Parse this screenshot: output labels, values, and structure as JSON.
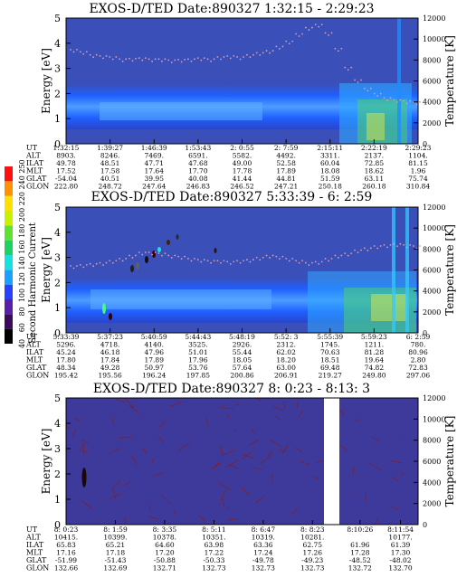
{
  "colors": {
    "background": "#3a4fb8",
    "band": "#1f5fff",
    "band_core": "#4d9dff",
    "noise_green": "#49d26c",
    "noise_yellow": "#f2ee3a",
    "gap": "#ffffff",
    "temp_points": "#d4a0b8",
    "panel3_bg": "#3e3a9c",
    "panel3_lines": "#7a2030"
  },
  "colorbar": {
    "label": "Second Harmonic Current",
    "tick_labels": [
      "40",
      "60",
      "80",
      "100",
      "120",
      "140",
      "160",
      "180",
      "200",
      "220",
      "240",
      "250"
    ],
    "colors": [
      "#000000",
      "#3b0a5c",
      "#5a1ea8",
      "#2840ff",
      "#1aa0ff",
      "#19e0e0",
      "#20d060",
      "#60e030",
      "#c8f000",
      "#ffe000",
      "#ff9000",
      "#ff1010"
    ]
  },
  "panels": [
    {
      "title": "EXOS-D/TED   Date:890327   1:32:15 - 2:29:23",
      "ylabel": "Energy [eV]",
      "y2label": "Temperature [K]",
      "yticks": [
        "0",
        "1",
        "2",
        "3",
        "4",
        "5"
      ],
      "y2ticks": [
        "0",
        "2000",
        "4000",
        "6000",
        "8000",
        "10000",
        "12000"
      ],
      "row_labels": [
        "UT",
        "ALT",
        "ILAT",
        "MLT",
        "GLAT",
        "GLON"
      ],
      "columns": [
        [
          "1:32:15",
          "8903.",
          "49.78",
          "17.52",
          "-54.04",
          "222.80"
        ],
        [
          "1:39:27",
          "8246.",
          "48.51",
          "17.58",
          "40.51",
          "248.72"
        ],
        [
          "1:46:39",
          "7469.",
          "47.71",
          "17.64",
          "39.95",
          "247.64"
        ],
        [
          "1:53:43",
          "6591.",
          "47.68",
          "17.70",
          "40.08",
          "246.83"
        ],
        [
          "2: 0:55",
          "5582.",
          "49.00",
          "17.78",
          "41.44",
          "246.52"
        ],
        [
          "2: 7:59",
          "4492.",
          "52.58",
          "17.89",
          "44.81",
          "247.21"
        ],
        [
          "2:15:11",
          "3311.",
          "60.04",
          "18.08",
          "51.59",
          "250.18"
        ],
        [
          "2:22:19",
          "2137.",
          "72.85",
          "18.62",
          "63.11",
          "260.18"
        ],
        [
          "2:29:23",
          "1104.",
          "81.15",
          "1.96",
          "75.74",
          "310.84"
        ]
      ]
    },
    {
      "title": "EXOS-D/TED   Date:890327   5:33:39 - 6: 2:59",
      "ylabel": "Energy [eV]",
      "y2label": "Temperature [K]",
      "yticks": [
        "0",
        "1",
        "2",
        "3",
        "4",
        "5"
      ],
      "y2ticks": [
        "0",
        "2000",
        "4000",
        "6000",
        "8000",
        "10000",
        "12000"
      ],
      "row_labels": [
        "UT",
        "ALT",
        "ILAT",
        "MLT",
        "GLAT",
        "GLON"
      ],
      "columns": [
        [
          "5:33:39",
          "5296.",
          "45.24",
          "17.80",
          "48.34",
          "195.42"
        ],
        [
          "5:37:23",
          "4718.",
          "46.18",
          "17.84",
          "49.28",
          "195.56"
        ],
        [
          "5:40:59",
          "4140.",
          "47.96",
          "17.89",
          "50.97",
          "196.24"
        ],
        [
          "5:44:43",
          "3525.",
          "51.01",
          "17.96",
          "53.76",
          "197.85"
        ],
        [
          "5:48:19",
          "2926.",
          "55.44",
          "18.05",
          "57.64",
          "200.86"
        ],
        [
          "5:52: 3",
          "2312.",
          "62.02",
          "18.20",
          "63.00",
          "206.91"
        ],
        [
          "5:55:39",
          "1745.",
          "70.63",
          "18.51",
          "69.48",
          "219.27"
        ],
        [
          "5:59:23",
          "1211.",
          "81.28",
          "19.64",
          "74.82",
          "249.80"
        ],
        [
          "6: 2:59",
          "780.",
          "80.96",
          "2.80",
          "72.83",
          "297.06"
        ]
      ]
    },
    {
      "title": "EXOS-D/TED   Date:890327   8: 0:23 - 8:13: 3",
      "ylabel": "Energy [eV]",
      "y2label": "Temperature [K]",
      "yticks": [
        "0",
        "1",
        "2",
        "3",
        "4",
        "5"
      ],
      "y2ticks": [
        "0",
        "2000",
        "4000",
        "6000",
        "8000",
        "10000",
        "12000"
      ],
      "row_labels": [
        "UT",
        "ALT",
        "ILAT",
        "MLT",
        "GLAT",
        "GLON"
      ],
      "columns": [
        [
          "8: 0:23",
          "10415.",
          "65.83",
          "17.16",
          "-51.99",
          "132.66"
        ],
        [
          "8: 1:59",
          "10399.",
          "65.21",
          "17.18",
          "-51.43",
          "132.69"
        ],
        [
          "8: 3:35",
          "10378.",
          "64.60",
          "17.20",
          "-50.88",
          "132.71"
        ],
        [
          "8: 5:11",
          "10351.",
          "63.98",
          "17.22",
          "-50.33",
          "132.73"
        ],
        [
          "8: 6:47",
          "10319.",
          "63.36",
          "17.24",
          "-49.78",
          "132.73"
        ],
        [
          "8: 8:23",
          "10281.",
          "62.75",
          "17.26",
          "-49.23",
          "132.73"
        ],
        [
          "8:10:26",
          "",
          "61.96",
          "17.28",
          "-48.52",
          "132.72"
        ],
        [
          "8:11:54",
          "10177.",
          "61.39",
          "17.30",
          "-48.02",
          "132.70"
        ]
      ]
    }
  ],
  "chart_data": [
    {
      "type": "heatmap",
      "title": "EXOS-D/TED   Date:890327   1:32:15 - 2:29:23",
      "ylabel": "Energy [eV]",
      "y2label": "Temperature [K]",
      "ylim": [
        0,
        5
      ],
      "y2lim": [
        0,
        12000
      ],
      "series": [
        {
          "values": [
            8900,
            8700,
            8400,
            8300,
            8200,
            8000,
            8050,
            8100,
            8000,
            8000,
            7900,
            7950,
            8000,
            8100,
            8000,
            8200,
            8300,
            8200,
            8400,
            8600,
            8800,
            9200,
            9700,
            10400,
            11000,
            11300,
            10500,
            9000,
            7200,
            6000,
            5200,
            4700,
            4300,
            4100,
            4000,
            3900
          ]
        }
      ]
    },
    {
      "type": "heatmap",
      "title": "EXOS-D/TED   Date:890327   5:33:39 - 6: 2:59",
      "ylabel": "Energy [eV]",
      "y2label": "Temperature [K]",
      "ylim": [
        0,
        5
      ],
      "y2lim": [
        0,
        12000
      ],
      "series": [
        {
          "values": [
            6300,
            6400,
            6500,
            6600,
            6800,
            7000,
            7300,
            7600,
            7600,
            7500,
            7300,
            7200,
            7000,
            6900,
            6800,
            6800,
            6700,
            6800,
            6900,
            7100,
            7300,
            7200,
            7000,
            6800,
            6600,
            6700,
            7000,
            7300,
            7500,
            7800,
            8000,
            8200,
            8300,
            8400,
            8300,
            8200
          ]
        }
      ]
    },
    {
      "type": "heatmap",
      "title": "EXOS-D/TED   Date:890327   8: 0:23 - 8:13: 3",
      "ylabel": "Energy [eV]",
      "y2label": "Temperature [K]",
      "ylim": [
        0,
        5
      ],
      "y2lim": [
        0,
        12000
      ]
    }
  ]
}
